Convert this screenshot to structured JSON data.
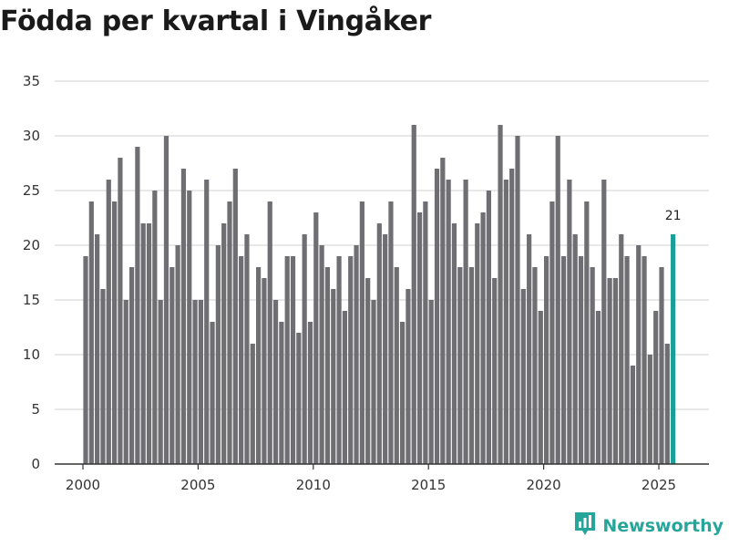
{
  "chart_data": {
    "type": "bar",
    "title": "Födda per kvartal i Vingåker",
    "xlabel": "",
    "ylabel": "",
    "ylim": [
      0,
      35
    ],
    "yticks": [
      0,
      5,
      10,
      15,
      20,
      25,
      30,
      35
    ],
    "xticks": [
      "2000",
      "2005",
      "2010",
      "2015",
      "2020",
      "2025"
    ],
    "xtick_values": [
      2000,
      2005,
      2010,
      2015,
      2020,
      2025
    ],
    "grid": true,
    "bar_color": "#6e6e73",
    "highlight_color": "#1a9e97",
    "highlight_label": "21",
    "start_year": 2000,
    "values": [
      19,
      24,
      21,
      16,
      26,
      24,
      28,
      15,
      18,
      29,
      22,
      22,
      25,
      15,
      30,
      18,
      20,
      27,
      25,
      15,
      15,
      26,
      13,
      20,
      22,
      24,
      27,
      19,
      21,
      11,
      18,
      17,
      24,
      15,
      13,
      19,
      19,
      12,
      21,
      13,
      23,
      20,
      18,
      16,
      19,
      14,
      19,
      20,
      24,
      17,
      15,
      22,
      21,
      24,
      18,
      13,
      16,
      31,
      23,
      24,
      15,
      27,
      28,
      26,
      22,
      18,
      26,
      18,
      22,
      23,
      25,
      17,
      31,
      26,
      27,
      30,
      16,
      21,
      18,
      14,
      19,
      24,
      30,
      19,
      26,
      21,
      19,
      24,
      18,
      14,
      26,
      17,
      17,
      21,
      19,
      9,
      20,
      19,
      10,
      14,
      18,
      11,
      21
    ]
  },
  "brand": {
    "name": "Newsworthy",
    "color": "#26a69a"
  }
}
